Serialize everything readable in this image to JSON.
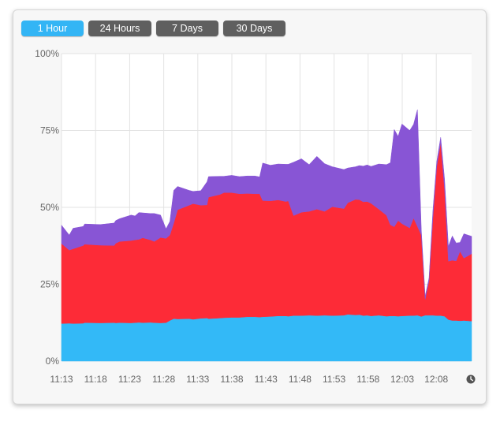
{
  "tabs": [
    {
      "label": "1 Hour",
      "active": true
    },
    {
      "label": "24 Hours",
      "active": false
    },
    {
      "label": "7 Days",
      "active": false
    },
    {
      "label": "30 Days",
      "active": false
    }
  ],
  "clock_icon": "clock-icon",
  "chart_data": {
    "type": "area",
    "stacked": true,
    "ylim": [
      0,
      100
    ],
    "y_ticks": [
      "0%",
      "25%",
      "50%",
      "75%",
      "100%"
    ],
    "x_ticks": [
      "11:13",
      "11:18",
      "11:23",
      "11:28",
      "11:33",
      "11:38",
      "11:43",
      "11:48",
      "11:53",
      "11:58",
      "12:03",
      "12:08"
    ],
    "grid": true,
    "x": [
      0,
      1,
      1.5,
      2.8,
      3,
      5,
      6.8,
      7,
      7.5,
      9,
      9.5,
      10,
      10.5,
      11.5,
      12,
      12.8,
      13.5,
      14,
      14.5,
      15,
      16.5,
      17,
      18,
      18.8,
      19,
      20.5,
      21,
      22,
      23,
      24,
      25,
      25.6,
      26,
      27,
      28,
      29,
      29.3,
      30,
      31,
      32,
      33,
      34,
      35,
      36.5,
      37,
      38,
      38.5,
      39,
      39.5,
      40,
      41,
      42,
      42.5,
      43,
      43.5,
      44,
      45,
      45.5,
      46,
      46.5,
      47,
      47.5,
      48,
      48.5,
      49,
      49.5,
      50,
      50.5,
      51,
      51.5,
      52,
      53
    ],
    "series": [
      {
        "color": "#33b9f7",
        "values": [
          12.2,
          12.3,
          12.2,
          12.3,
          12.5,
          12.4,
          12.5,
          12.4,
          12.5,
          12.4,
          12.5,
          12.6,
          12.5,
          12.6,
          12.5,
          12.4,
          12.5,
          13.2,
          13.8,
          13.7,
          13.8,
          13.6,
          13.9,
          14.0,
          13.8,
          14.0,
          14.1,
          14.2,
          14.2,
          14.4,
          14.4,
          14.3,
          14.4,
          14.5,
          14.7,
          14.7,
          14.6,
          14.8,
          14.8,
          14.9,
          14.8,
          14.9,
          14.8,
          14.9,
          15.2,
          15.0,
          15.1,
          14.8,
          14.9,
          14.7,
          14.9,
          14.6,
          14.7,
          14.7,
          14.6,
          14.7,
          14.8,
          14.8,
          14.9,
          14.5,
          14.9,
          14.9,
          14.9,
          14.8,
          14.8,
          14.6,
          13.5,
          13.2,
          13.2,
          13.1,
          13.2,
          13.0
        ]
      },
      {
        "color": "#fd2b37",
        "values": [
          26.0,
          23.8,
          24.3,
          25.3,
          25.5,
          25.3,
          25.1,
          25.9,
          26.4,
          26.8,
          26.9,
          27.0,
          27.6,
          26.8,
          26.4,
          27.8,
          27.4,
          27.8,
          31.1,
          35.5,
          36.9,
          37.6,
          36.8,
          36.8,
          39.5,
          40.2,
          40.7,
          40.6,
          40.2,
          40.1,
          40.0,
          40.1,
          37.8,
          37.6,
          37.7,
          37.2,
          37.5,
          32.5,
          33.6,
          33.8,
          34.6,
          33.8,
          35.4,
          34.7,
          36.3,
          37.6,
          37.4,
          37.0,
          37.0,
          36.6,
          34.5,
          32.8,
          29.6,
          29.0,
          31.1,
          30.0,
          28.5,
          31.7,
          28.9,
          26.5,
          5.2,
          11.2,
          31.5,
          48.5,
          56.2,
          41.3,
          19.0,
          19.6,
          19.4,
          22.6,
          20.3,
          21.9
        ]
      },
      {
        "color": "#8855d5",
        "values": [
          6.0,
          4.9,
          6.7,
          6.2,
          6.6,
          6.7,
          7.3,
          7.4,
          7.4,
          8.3,
          7.8,
          8.7,
          8.1,
          8.6,
          9.1,
          7.3,
          3.1,
          4.4,
          10.6,
          7.6,
          4.8,
          4.0,
          4.7,
          7.5,
          6.7,
          5.9,
          5.3,
          5.6,
          5.6,
          5.7,
          5.8,
          5.5,
          12.2,
          11.6,
          11.7,
          12.1,
          11.9,
          17.4,
          17.4,
          15.2,
          17.2,
          15.5,
          13.0,
          12.7,
          11.3,
          10.6,
          11.1,
          11.6,
          11.9,
          12.0,
          14.7,
          16.5,
          20.2,
          31.6,
          27.4,
          32.4,
          31.7,
          30.5,
          38.0,
          1.8,
          1.0,
          0.9,
          2.5,
          1.6,
          1.8,
          3.3,
          4.8,
          7.9,
          5.8,
          2.9,
          7.9,
          5.7
        ]
      }
    ]
  }
}
